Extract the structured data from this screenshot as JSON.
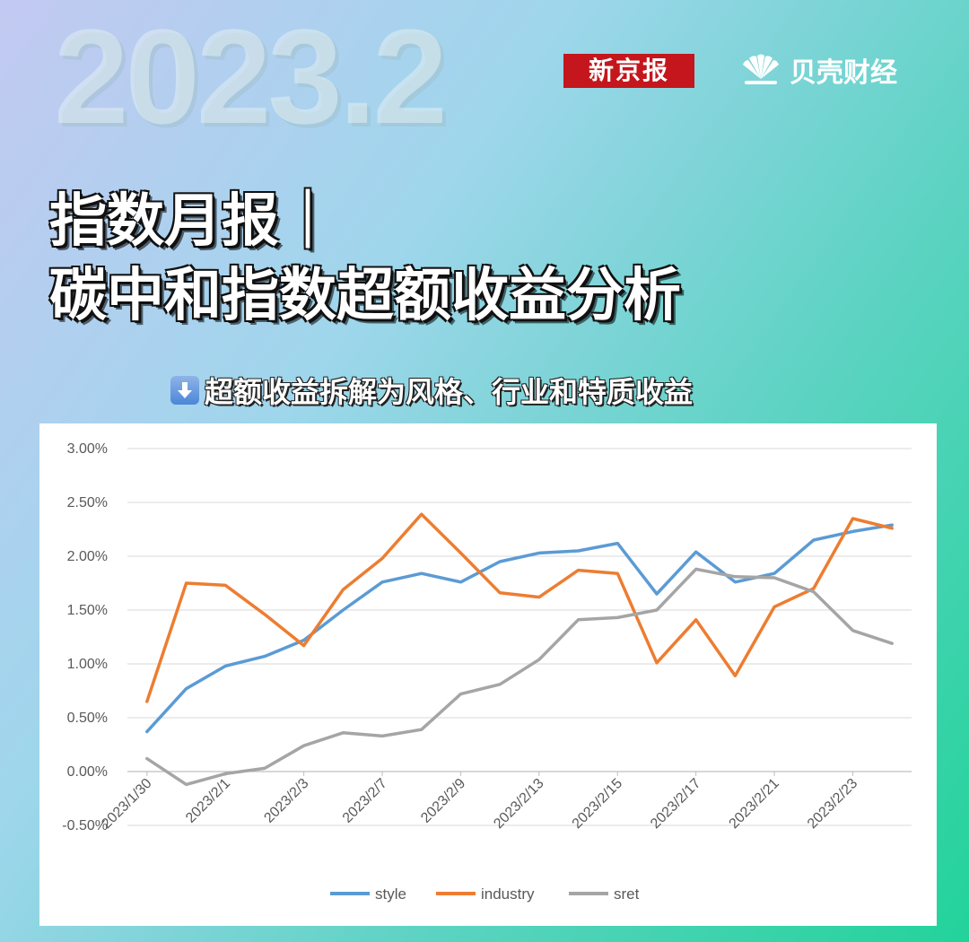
{
  "header": {
    "year_label": "2023.2",
    "brand_left": "新京报",
    "brand_right": "贝壳财经",
    "brand_right_icon": "shell-logo-icon"
  },
  "title": {
    "line1": "指数月报｜",
    "line2": "碳中和指数超额收益分析"
  },
  "subtitle": {
    "icon": "down-arrow-icon",
    "text": "超额收益拆解为风格、行业和特质收益"
  },
  "chart_data": {
    "type": "line",
    "x": [
      "2023/1/30",
      "2023/1/31",
      "2023/2/1",
      "2023/2/2",
      "2023/2/3",
      "2023/2/6",
      "2023/2/7",
      "2023/2/8",
      "2023/2/9",
      "2023/2/10",
      "2023/2/13",
      "2023/2/14",
      "2023/2/15",
      "2023/2/16",
      "2023/2/17",
      "2023/2/20",
      "2023/2/21",
      "2023/2/22",
      "2023/2/23",
      "2023/2/24"
    ],
    "tick_labels": [
      "2023/1/30",
      "2023/2/1",
      "2023/2/3",
      "2023/2/7",
      "2023/2/9",
      "2023/2/13",
      "2023/2/15",
      "2023/2/17",
      "2023/2/21",
      "2023/2/23"
    ],
    "series": [
      {
        "name": "style",
        "color": "#5b9bd5",
        "values": [
          0.37,
          0.77,
          0.98,
          1.07,
          1.22,
          1.5,
          1.76,
          1.84,
          1.76,
          1.95,
          2.03,
          2.05,
          2.12,
          1.65,
          2.04,
          1.76,
          1.84,
          2.15,
          2.23,
          2.29
        ]
      },
      {
        "name": "industry",
        "color": "#ed7d31",
        "values": [
          0.65,
          1.75,
          1.73,
          1.46,
          1.17,
          1.69,
          1.98,
          2.39,
          2.03,
          1.66,
          1.62,
          1.87,
          1.84,
          1.01,
          1.41,
          0.89,
          1.53,
          1.7,
          2.35,
          2.26
        ]
      },
      {
        "name": "sret",
        "color": "#a5a5a5",
        "values": [
          0.12,
          -0.12,
          -0.02,
          0.03,
          0.24,
          0.36,
          0.33,
          0.39,
          0.72,
          0.81,
          1.04,
          1.41,
          1.43,
          1.5,
          1.88,
          1.81,
          1.8,
          1.67,
          1.31,
          1.19
        ]
      }
    ],
    "y_ticks": [
      "3.00%",
      "2.50%",
      "2.00%",
      "1.50%",
      "1.00%",
      "0.50%",
      "0.00%",
      "-0.50%"
    ],
    "ylim": [
      -0.5,
      3.0
    ],
    "grid": true,
    "legend_position": "bottom"
  }
}
